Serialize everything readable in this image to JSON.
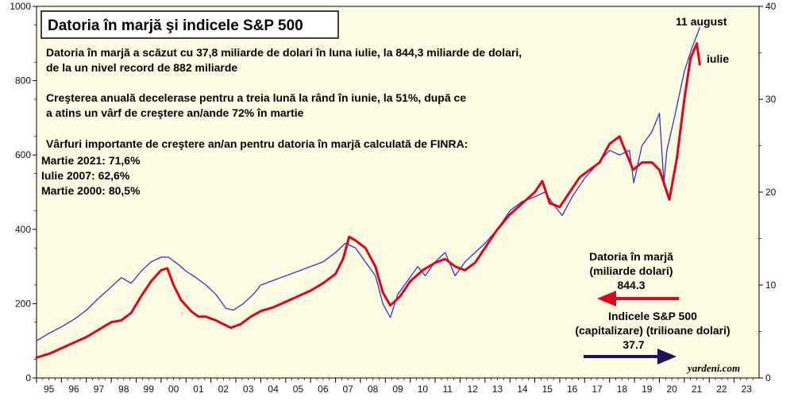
{
  "chart_data": {
    "type": "line",
    "title": "Datoria în marjă şi indicele S&P 500",
    "notes": [
      "Datoria în marjă a scăzut cu 37,8 miliarde de dolari în luna iulie, la 844,3 miliarde de dolari,",
      "de la un nivel record de 882 miliarde",
      "Creşterea anuală decelerase pentru a treia lună la rând în iunie, la 51%, după ce",
      "a atins un vârf de creştere an/ande 72% în martie",
      "Vârfuri importante de creştere an/an pentru datoria în marjă calculată de FINRA:",
      "Martie 2021: 71,6%",
      "Iulie 2007: 62,6%",
      "Martie 2000: 80,5%"
    ],
    "x_ticks": [
      "95",
      "96",
      "97",
      "98",
      "99",
      "00",
      "01",
      "02",
      "03",
      "04",
      "05",
      "06",
      "07",
      "08",
      "09",
      "10",
      "11",
      "12",
      "13",
      "14",
      "15",
      "16",
      "17",
      "18",
      "19",
      "20",
      "21",
      "22",
      "23"
    ],
    "xlim": [
      1995,
      2024
    ],
    "y_left": {
      "ticks": [
        "0",
        "200",
        "400",
        "600",
        "800",
        "1000"
      ],
      "ylim": [
        0,
        1000
      ]
    },
    "y_right": {
      "ticks": [
        "0",
        "10",
        "20",
        "30",
        "40"
      ],
      "ylim": [
        0,
        40
      ]
    },
    "series": [
      {
        "name": "Datoria în marjă",
        "unit": "(miliarde dolari)",
        "value_label": "844.3",
        "color": "#e4001b",
        "axis": "left",
        "x": [
          1995.0,
          1995.5,
          1996.0,
          1996.5,
          1997.0,
          1997.5,
          1998.0,
          1998.4,
          1998.8,
          1999.2,
          1999.6,
          2000.0,
          2000.25,
          2000.5,
          2000.8,
          2001.2,
          2001.5,
          2001.8,
          2002.2,
          2002.5,
          2002.8,
          2003.2,
          2003.6,
          2004.0,
          2004.5,
          2005.0,
          2005.5,
          2006.0,
          2006.5,
          2007.0,
          2007.3,
          2007.55,
          2007.8,
          2008.2,
          2008.6,
          2008.9,
          2009.2,
          2009.6,
          2010.0,
          2010.5,
          2011.0,
          2011.4,
          2011.8,
          2012.2,
          2012.6,
          2013.0,
          2013.5,
          2014.0,
          2014.5,
          2015.0,
          2015.3,
          2015.6,
          2016.0,
          2016.4,
          2016.8,
          2017.2,
          2017.6,
          2018.0,
          2018.4,
          2018.7,
          2018.95,
          2019.3,
          2019.7,
          2020.0,
          2020.2,
          2020.4,
          2020.7,
          2021.0,
          2021.25,
          2021.5,
          2021.62
        ],
        "y": [
          55,
          65,
          80,
          95,
          110,
          130,
          150,
          155,
          175,
          220,
          260,
          290,
          295,
          250,
          210,
          180,
          165,
          165,
          155,
          145,
          135,
          145,
          165,
          180,
          190,
          205,
          220,
          235,
          255,
          280,
          320,
          380,
          370,
          350,
          300,
          230,
          195,
          220,
          260,
          290,
          310,
          320,
          300,
          290,
          310,
          350,
          400,
          440,
          470,
          500,
          530,
          470,
          460,
          500,
          540,
          560,
          580,
          630,
          650,
          600,
          560,
          580,
          580,
          560,
          520,
          480,
          590,
          750,
          860,
          900,
          844
        ]
      },
      {
        "name": "Indicele S&P 500",
        "unit": "(capitalizare) (trilioane dolari)",
        "value_label": "37.7",
        "color": "#3a2bd3",
        "axis": "right",
        "x": [
          1995.0,
          1995.5,
          1996.0,
          1996.5,
          1997.0,
          1997.5,
          1998.0,
          1998.4,
          1998.8,
          1999.2,
          1999.6,
          2000.0,
          2000.3,
          2000.7,
          2001.0,
          2001.4,
          2001.8,
          2002.2,
          2002.6,
          2002.9,
          2003.3,
          2003.7,
          2004.0,
          2004.5,
          2005.0,
          2005.5,
          2006.0,
          2006.5,
          2007.0,
          2007.4,
          2007.8,
          2008.2,
          2008.6,
          2008.9,
          2009.2,
          2009.5,
          2009.9,
          2010.3,
          2010.6,
          2011.0,
          2011.4,
          2011.8,
          2012.2,
          2012.6,
          2013.0,
          2013.5,
          2014.0,
          2014.5,
          2015.0,
          2015.4,
          2015.8,
          2016.1,
          2016.5,
          2017.0,
          2017.5,
          2018.0,
          2018.4,
          2018.8,
          2018.97,
          2019.3,
          2019.7,
          2020.0,
          2020.18,
          2020.3,
          2020.6,
          2021.0,
          2021.3,
          2021.62
        ],
        "y": [
          4.0,
          4.8,
          5.5,
          6.3,
          7.3,
          8.6,
          9.8,
          10.8,
          10.2,
          11.5,
          12.5,
          13.0,
          13.0,
          12.2,
          11.5,
          10.8,
          10.0,
          9.0,
          7.5,
          7.3,
          8.0,
          9.0,
          10.0,
          10.5,
          11.0,
          11.5,
          12.0,
          12.5,
          13.5,
          14.5,
          14.0,
          12.5,
          11.0,
          8.0,
          6.5,
          9.0,
          10.5,
          12.0,
          11.0,
          12.5,
          13.5,
          11.0,
          12.5,
          13.5,
          14.5,
          16.0,
          18.0,
          19.0,
          19.5,
          20.0,
          18.5,
          17.5,
          19.5,
          21.5,
          23.0,
          24.5,
          24.0,
          24.5,
          21.0,
          25.0,
          26.5,
          28.5,
          21.0,
          24.5,
          28.0,
          33.0,
          35.5,
          37.7
        ]
      }
    ],
    "annotations": {
      "top": "11 august",
      "right": "iulie"
    },
    "source": "yardeni.com",
    "grid": false,
    "background": "#fdfde3"
  }
}
